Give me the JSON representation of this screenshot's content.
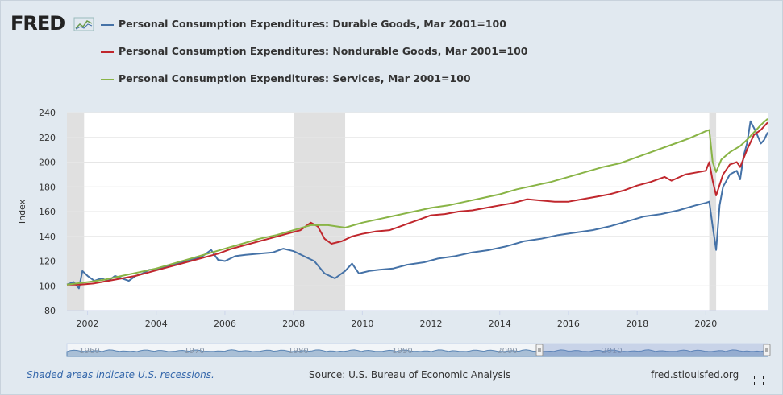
{
  "brand": {
    "logo_text": "FRED"
  },
  "legend": [
    {
      "label": "Personal Consumption Expenditures: Durable Goods, Mar 2001=100",
      "color": "#4572a7"
    },
    {
      "label": "Personal Consumption Expenditures: Nondurable Goods, Mar 2001=100",
      "color": "#c0272d"
    },
    {
      "label": "Personal Consumption Expenditures: Services, Mar 2001=100",
      "color": "#89b446"
    }
  ],
  "footer": {
    "recession_note": "Shaded areas indicate U.S. recessions.",
    "source": "Source: U.S. Bureau of Economic Analysis",
    "site": "fred.stlouisfed.org"
  },
  "navigator": {
    "labels": [
      "1960",
      "1970",
      "1980",
      "1990",
      "2000",
      "2010"
    ]
  },
  "chart_data": {
    "type": "line",
    "ylabel": "Index",
    "xlabel": "",
    "ylim": [
      80,
      240
    ],
    "xlim": [
      2001.4,
      2021.8
    ],
    "y_ticks": [
      80,
      100,
      120,
      140,
      160,
      180,
      200,
      220,
      240
    ],
    "x_ticks": [
      2002,
      2004,
      2006,
      2008,
      2010,
      2012,
      2014,
      2016,
      2018,
      2020
    ],
    "recessions": [
      [
        2001.2,
        2001.9
      ],
      [
        2008.0,
        2009.5
      ],
      [
        2020.1,
        2020.3
      ]
    ],
    "grid": "horizontal",
    "series": [
      {
        "name": "Personal Consumption Expenditures: Durable Goods, Mar 2001=100",
        "color": "#4572a7",
        "points": [
          [
            2001.4,
            101
          ],
          [
            2001.6,
            103
          ],
          [
            2001.75,
            98
          ],
          [
            2001.85,
            112
          ],
          [
            2002.0,
            108
          ],
          [
            2002.2,
            104
          ],
          [
            2002.4,
            106
          ],
          [
            2002.6,
            104
          ],
          [
            2002.8,
            108
          ],
          [
            2003.0,
            106
          ],
          [
            2003.2,
            104
          ],
          [
            2003.4,
            108
          ],
          [
            2003.6,
            110
          ],
          [
            2003.8,
            113
          ],
          [
            2004.0,
            113
          ],
          [
            2004.3,
            116
          ],
          [
            2004.6,
            118
          ],
          [
            2005.0,
            121
          ],
          [
            2005.3,
            123
          ],
          [
            2005.6,
            129
          ],
          [
            2005.8,
            121
          ],
          [
            2006.0,
            120
          ],
          [
            2006.3,
            124
          ],
          [
            2006.6,
            125
          ],
          [
            2007.0,
            126
          ],
          [
            2007.4,
            127
          ],
          [
            2007.7,
            130
          ],
          [
            2008.0,
            128
          ],
          [
            2008.3,
            124
          ],
          [
            2008.6,
            120
          ],
          [
            2008.9,
            110
          ],
          [
            2009.2,
            106
          ],
          [
            2009.5,
            112
          ],
          [
            2009.7,
            118
          ],
          [
            2009.9,
            110
          ],
          [
            2010.2,
            112
          ],
          [
            2010.5,
            113
          ],
          [
            2010.9,
            114
          ],
          [
            2011.3,
            117
          ],
          [
            2011.8,
            119
          ],
          [
            2012.2,
            122
          ],
          [
            2012.7,
            124
          ],
          [
            2013.2,
            127
          ],
          [
            2013.7,
            129
          ],
          [
            2014.2,
            132
          ],
          [
            2014.7,
            136
          ],
          [
            2015.2,
            138
          ],
          [
            2015.7,
            141
          ],
          [
            2016.2,
            143
          ],
          [
            2016.7,
            145
          ],
          [
            2017.2,
            148
          ],
          [
            2017.7,
            152
          ],
          [
            2018.2,
            156
          ],
          [
            2018.7,
            158
          ],
          [
            2019.2,
            161
          ],
          [
            2019.7,
            165
          ],
          [
            2020.0,
            167
          ],
          [
            2020.1,
            168
          ],
          [
            2020.2,
            148
          ],
          [
            2020.3,
            129
          ],
          [
            2020.4,
            165
          ],
          [
            2020.5,
            180
          ],
          [
            2020.7,
            190
          ],
          [
            2020.9,
            193
          ],
          [
            2021.0,
            186
          ],
          [
            2021.1,
            205
          ],
          [
            2021.2,
            215
          ],
          [
            2021.3,
            233
          ],
          [
            2021.45,
            225
          ],
          [
            2021.6,
            215
          ],
          [
            2021.7,
            218
          ],
          [
            2021.8,
            224
          ]
        ]
      },
      {
        "name": "Personal Consumption Expenditures: Nondurable Goods, Mar 2001=100",
        "color": "#c0272d",
        "points": [
          [
            2001.4,
            101
          ],
          [
            2001.8,
            101
          ],
          [
            2002.2,
            102
          ],
          [
            2002.6,
            104
          ],
          [
            2003.0,
            106
          ],
          [
            2003.4,
            108
          ],
          [
            2003.8,
            111
          ],
          [
            2004.2,
            114
          ],
          [
            2004.6,
            117
          ],
          [
            2005.0,
            120
          ],
          [
            2005.4,
            123
          ],
          [
            2005.8,
            126
          ],
          [
            2006.2,
            130
          ],
          [
            2006.6,
            133
          ],
          [
            2007.0,
            136
          ],
          [
            2007.4,
            139
          ],
          [
            2007.8,
            142
          ],
          [
            2008.2,
            145
          ],
          [
            2008.5,
            151
          ],
          [
            2008.7,
            148
          ],
          [
            2008.9,
            138
          ],
          [
            2009.1,
            134
          ],
          [
            2009.4,
            136
          ],
          [
            2009.7,
            140
          ],
          [
            2010.0,
            142
          ],
          [
            2010.4,
            144
          ],
          [
            2010.8,
            145
          ],
          [
            2011.2,
            149
          ],
          [
            2011.6,
            153
          ],
          [
            2012.0,
            157
          ],
          [
            2012.4,
            158
          ],
          [
            2012.8,
            160
          ],
          [
            2013.2,
            161
          ],
          [
            2013.6,
            163
          ],
          [
            2014.0,
            165
          ],
          [
            2014.4,
            167
          ],
          [
            2014.8,
            170
          ],
          [
            2015.2,
            169
          ],
          [
            2015.6,
            168
          ],
          [
            2016.0,
            168
          ],
          [
            2016.4,
            170
          ],
          [
            2016.8,
            172
          ],
          [
            2017.2,
            174
          ],
          [
            2017.6,
            177
          ],
          [
            2018.0,
            181
          ],
          [
            2018.4,
            184
          ],
          [
            2018.8,
            188
          ],
          [
            2019.0,
            185
          ],
          [
            2019.4,
            190
          ],
          [
            2019.8,
            192
          ],
          [
            2020.0,
            193
          ],
          [
            2020.1,
            200
          ],
          [
            2020.2,
            185
          ],
          [
            2020.3,
            173
          ],
          [
            2020.5,
            190
          ],
          [
            2020.7,
            198
          ],
          [
            2020.9,
            200
          ],
          [
            2021.0,
            196
          ],
          [
            2021.2,
            210
          ],
          [
            2021.4,
            222
          ],
          [
            2021.6,
            226
          ],
          [
            2021.8,
            232
          ]
        ]
      },
      {
        "name": "Personal Consumption Expenditures: Services, Mar 2001=100",
        "color": "#89b446",
        "points": [
          [
            2001.4,
            101
          ],
          [
            2002.0,
            103
          ],
          [
            2002.5,
            105
          ],
          [
            2003.0,
            108
          ],
          [
            2003.5,
            111
          ],
          [
            2004.0,
            114
          ],
          [
            2004.5,
            118
          ],
          [
            2005.0,
            122
          ],
          [
            2005.5,
            126
          ],
          [
            2006.0,
            130
          ],
          [
            2006.5,
            134
          ],
          [
            2007.0,
            138
          ],
          [
            2007.5,
            141
          ],
          [
            2008.0,
            145
          ],
          [
            2008.5,
            149
          ],
          [
            2009.0,
            149
          ],
          [
            2009.5,
            147
          ],
          [
            2010.0,
            151
          ],
          [
            2010.5,
            154
          ],
          [
            2011.0,
            157
          ],
          [
            2011.5,
            160
          ],
          [
            2012.0,
            163
          ],
          [
            2012.5,
            165
          ],
          [
            2013.0,
            168
          ],
          [
            2013.5,
            171
          ],
          [
            2014.0,
            174
          ],
          [
            2014.5,
            178
          ],
          [
            2015.0,
            181
          ],
          [
            2015.5,
            184
          ],
          [
            2016.0,
            188
          ],
          [
            2016.5,
            192
          ],
          [
            2017.0,
            196
          ],
          [
            2017.5,
            199
          ],
          [
            2018.0,
            204
          ],
          [
            2018.5,
            209
          ],
          [
            2019.0,
            214
          ],
          [
            2019.5,
            219
          ],
          [
            2020.0,
            225
          ],
          [
            2020.1,
            226
          ],
          [
            2020.2,
            200
          ],
          [
            2020.3,
            192
          ],
          [
            2020.45,
            202
          ],
          [
            2020.7,
            208
          ],
          [
            2021.0,
            213
          ],
          [
            2021.2,
            218
          ],
          [
            2021.4,
            224
          ],
          [
            2021.6,
            230
          ],
          [
            2021.8,
            235
          ]
        ]
      }
    ]
  }
}
